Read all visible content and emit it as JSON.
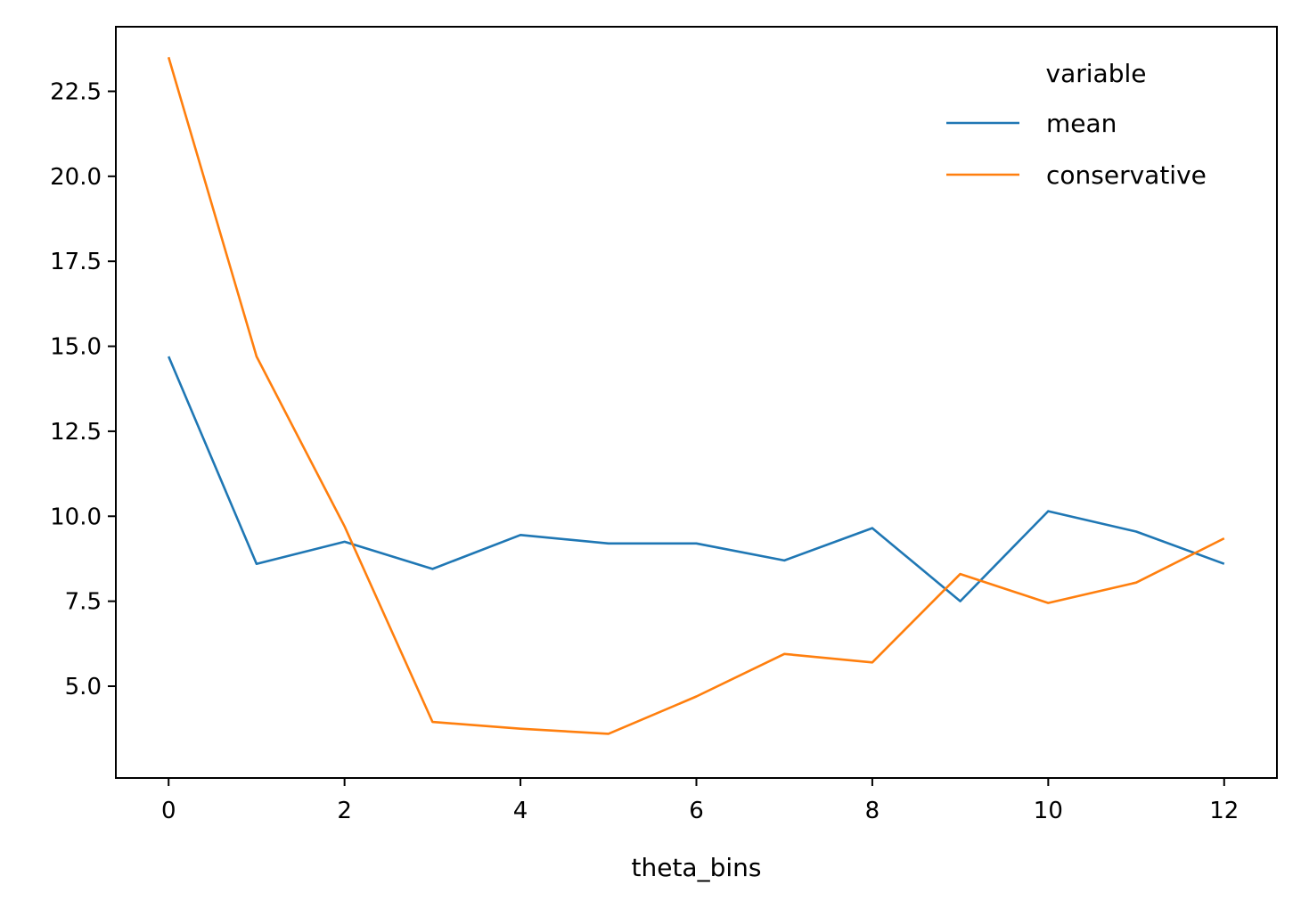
{
  "chart_data": {
    "type": "line",
    "xlabel": "theta_bins",
    "ylabel": "",
    "x": [
      0,
      1,
      2,
      3,
      4,
      5,
      6,
      7,
      8,
      9,
      10,
      11,
      12
    ],
    "xlim": [
      -0.6,
      12.6
    ],
    "ylim": [
      2.3,
      24.4
    ],
    "x_ticks": [
      0,
      2,
      4,
      6,
      8,
      10,
      12
    ],
    "y_ticks": [
      5.0,
      7.5,
      10.0,
      12.5,
      15.0,
      17.5,
      20.0,
      22.5
    ],
    "x_tick_labels": [
      "0",
      "2",
      "4",
      "6",
      "8",
      "10",
      "12"
    ],
    "y_tick_labels": [
      "5.0",
      "7.5",
      "10.0",
      "12.5",
      "15.0",
      "17.5",
      "20.0",
      "22.5"
    ],
    "grid": false,
    "legend": {
      "title": "variable",
      "placement": "top-right",
      "frame": false
    },
    "series": [
      {
        "name": "mean",
        "color": "#1f77b4",
        "values": [
          14.7,
          8.6,
          9.25,
          8.45,
          9.45,
          9.2,
          9.2,
          8.7,
          9.65,
          7.5,
          10.15,
          9.55,
          8.6
        ]
      },
      {
        "name": "conservative",
        "color": "#ff7f0e",
        "values": [
          23.5,
          14.7,
          9.7,
          3.95,
          3.75,
          3.6,
          4.7,
          5.95,
          5.7,
          8.3,
          7.45,
          8.05,
          9.35
        ]
      }
    ]
  }
}
